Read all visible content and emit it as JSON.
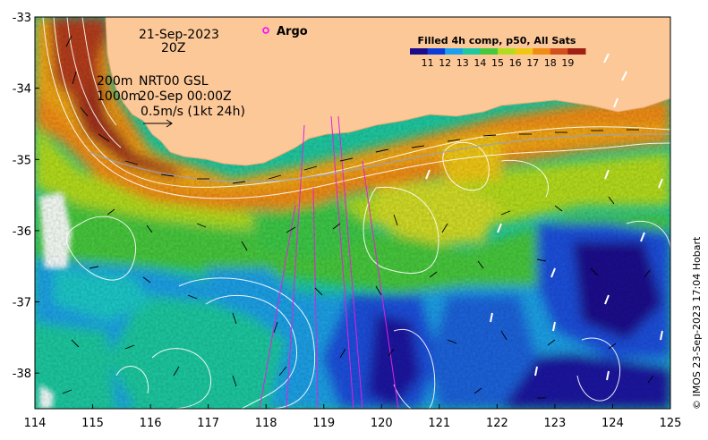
{
  "chart_data": {
    "type": "heatmap",
    "title": "Filled 4h comp, p50, All Sats",
    "colorbar": {
      "ticks": [
        "11",
        "12",
        "13",
        "14",
        "15",
        "16",
        "17",
        "18",
        "19"
      ],
      "colors": [
        "#1a0a8c",
        "#0a3cdc",
        "#1aa0f0",
        "#1ec8a0",
        "#46c83c",
        "#b4dc1e",
        "#f0c814",
        "#f08c14",
        "#d2501e",
        "#a01e14"
      ]
    },
    "x_ticks": [
      "114",
      "115",
      "116",
      "117",
      "118",
      "119",
      "120",
      "121",
      "122",
      "123",
      "124",
      "125"
    ],
    "y_ticks": [
      "-33",
      "-34",
      "-35",
      "-36",
      "-37",
      "-38"
    ],
    "xlim": [
      114,
      125
    ],
    "ylim": [
      -38.5,
      -33
    ],
    "annotations": {
      "date": "21-Sep-2023",
      "time": "20Z",
      "depth1": "200m",
      "depth2": "1000m",
      "product": "NRT00 GSL",
      "product_time": "20-Sep 00:00Z",
      "scale": "0.5m/s (1kt 24h)"
    },
    "legend": {
      "argo_label": "Argo",
      "argo_color": "#ff00ff"
    },
    "credit": "© IMOS 23-Sep-2023 17:04 Hobart",
    "land_color": "#fcc898"
  }
}
